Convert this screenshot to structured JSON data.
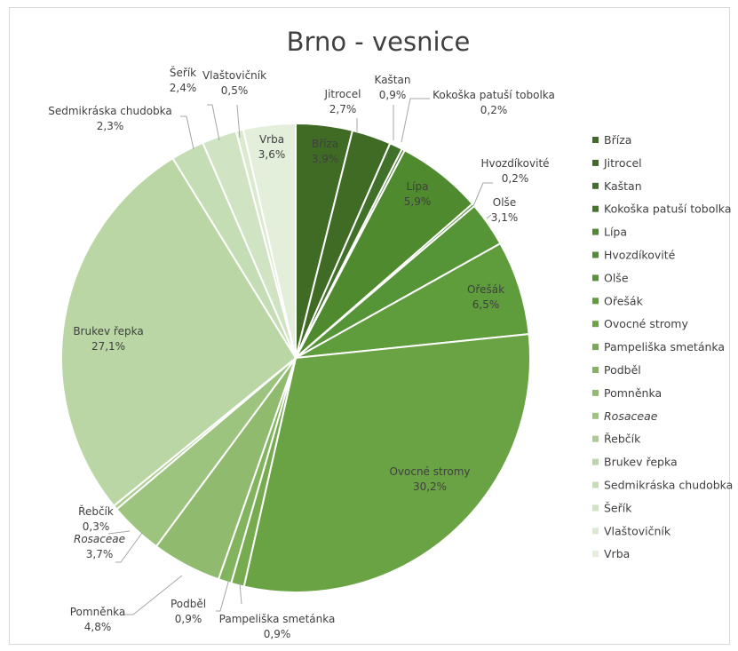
{
  "chart_data": {
    "type": "pie",
    "title": "Brno - vesnice",
    "legend_position": "right",
    "slices": [
      {
        "name": "Bříza",
        "percent": 3.9,
        "value_label": "3,9%",
        "color": "#3f6b25",
        "italic": false
      },
      {
        "name": "Jitrocel",
        "percent": 2.7,
        "value_label": "2,7%",
        "color": "#3f6b25",
        "italic": false
      },
      {
        "name": "Kaštan",
        "percent": 0.9,
        "value_label": "0,9%",
        "color": "#41702a",
        "italic": false
      },
      {
        "name": "Kokoška patuší tobolka",
        "percent": 0.2,
        "value_label": "0,2%",
        "color": "#44752c",
        "italic": false
      },
      {
        "name": "Lípa",
        "percent": 5.9,
        "value_label": "5,9%",
        "color": "#4f8a2f",
        "italic": false
      },
      {
        "name": "Hvozdíkovité",
        "percent": 0.2,
        "value_label": "0,2%",
        "color": "#528e33",
        "italic": false
      },
      {
        "name": "Olše",
        "percent": 3.1,
        "value_label": "3,1%",
        "color": "#559437",
        "italic": false
      },
      {
        "name": "Ořešák",
        "percent": 6.5,
        "value_label": "6,5%",
        "color": "#5e9c3c",
        "italic": false
      },
      {
        "name": "Ovocné stromy",
        "percent": 30.2,
        "value_label": "30,2%",
        "color": "#6aa343",
        "italic": false
      },
      {
        "name": "Pampeliška smetánka",
        "percent": 0.9,
        "value_label": "0,9%",
        "color": "#76ab50",
        "italic": false
      },
      {
        "name": "Podběl",
        "percent": 0.9,
        "value_label": "0,9%",
        "color": "#82b35e",
        "italic": false
      },
      {
        "name": "Pomněnka",
        "percent": 4.8,
        "value_label": "4,8%",
        "color": "#90bb6e",
        "italic": false
      },
      {
        "name": "Rosaceae",
        "percent": 3.7,
        "value_label": "3,7%",
        "color": "#9dc47f",
        "italic": true
      },
      {
        "name": "Řebčík",
        "percent": 0.3,
        "value_label": "0,3%",
        "color": "#abcd91",
        "italic": false
      },
      {
        "name": "Brukev řepka",
        "percent": 27.1,
        "value_label": "27,1%",
        "color": "#b9d6a4",
        "italic": false
      },
      {
        "name": "Sedmikráska chudobka",
        "percent": 2.3,
        "value_label": "2,3%",
        "color": "#c5ddb4",
        "italic": false
      },
      {
        "name": "Šeřík",
        "percent": 2.4,
        "value_label": "2,4%",
        "color": "#d0e3c3",
        "italic": false
      },
      {
        "name": "Vlaštovičník",
        "percent": 0.5,
        "value_label": "0,5%",
        "color": "#dbeacf",
        "italic": false
      },
      {
        "name": "Vrba",
        "percent": 3.6,
        "value_label": "3,6%",
        "color": "#e3eedb",
        "italic": false
      }
    ]
  }
}
